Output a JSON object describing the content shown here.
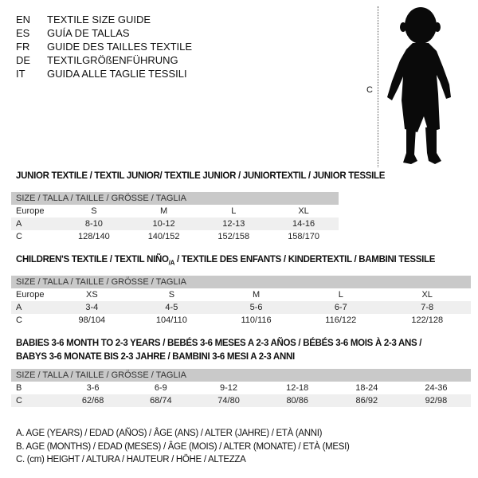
{
  "header": {
    "lines": [
      {
        "code": "EN",
        "text": "TEXTILE SIZE GUIDE"
      },
      {
        "code": "ES",
        "text": "GUÍA DE TALLAS"
      },
      {
        "code": "FR",
        "text": "GUIDE DES TAILLES TEXTILE"
      },
      {
        "code": "DE",
        "text": "TEXTILGRÖßENFÜHRUNG"
      },
      {
        "code": "IT",
        "text": "GUIDA ALLE TAGLIE TESSILI"
      }
    ]
  },
  "figure": {
    "label": "C",
    "icon": "child-silhouette"
  },
  "size_header": "SIZE / TALLA / TAILLE / GRÖSSE / TAGLIA",
  "junior": {
    "title": "JUNIOR TEXTILE / TEXTIL JUNIOR/ TEXTILE JUNIOR / JUNIORTEXTIL / JUNIOR TESSILE",
    "rows": [
      {
        "label": "Europe",
        "values": [
          "S",
          "M",
          "L",
          "XL"
        ]
      },
      {
        "label": "A",
        "values": [
          "8-10",
          "10-12",
          "12-13",
          "14-16"
        ]
      },
      {
        "label": "C",
        "values": [
          "128/140",
          "140/152",
          "152/158",
          "158/170"
        ]
      }
    ]
  },
  "children": {
    "title_a": "CHILDREN'S TEXTILE / TEXTIL NIÑO",
    "title_sub": "/A",
    "title_b": " / TEXTILE DES ENFANTS / KINDERTEXTIL / BAMBINI TESSILE",
    "rows": [
      {
        "label": "Europe",
        "values": [
          "XS",
          "S",
          "M",
          "L",
          "XL"
        ]
      },
      {
        "label": "A",
        "values": [
          "3-4",
          "4-5",
          "5-6",
          "6-7",
          "7-8"
        ]
      },
      {
        "label": "C",
        "values": [
          "98/104",
          "104/110",
          "110/116",
          "116/122",
          "122/128"
        ]
      }
    ]
  },
  "babies": {
    "title_line1": "BABIES 3-6 MONTH TO 2-3 YEARS / BEBÉS 3-6 MESES A 2-3 AÑOS / BÉBÉS 3-6 MOIS À 2-3 ANS /",
    "title_line2": "BABYS 3-6 MONATE BIS 2-3 JAHRE / BAMBINI 3-6 MESI A 2-3 ANNI",
    "rows": [
      {
        "label": "B",
        "values": [
          "3-6",
          "6-9",
          "9-12",
          "12-18",
          "18-24",
          "24-36"
        ]
      },
      {
        "label": "C",
        "values": [
          "62/68",
          "68/74",
          "74/80",
          "80/86",
          "86/92",
          "92/98"
        ]
      }
    ]
  },
  "legend": [
    "A. AGE (YEARS) / EDAD (AÑOS) / ÂGE (ANS) / ALTER (JAHRE) / ETÀ (ANNI)",
    "B. AGE (MONTHS) / EDAD (MESES) / ÂGE (MOIS) / ALTER (MONATE) / ETÀ (MESI)",
    "C. (cm) HEIGHT / ALTURA / HAUTEUR / HÖHE / ALTEZZA"
  ]
}
